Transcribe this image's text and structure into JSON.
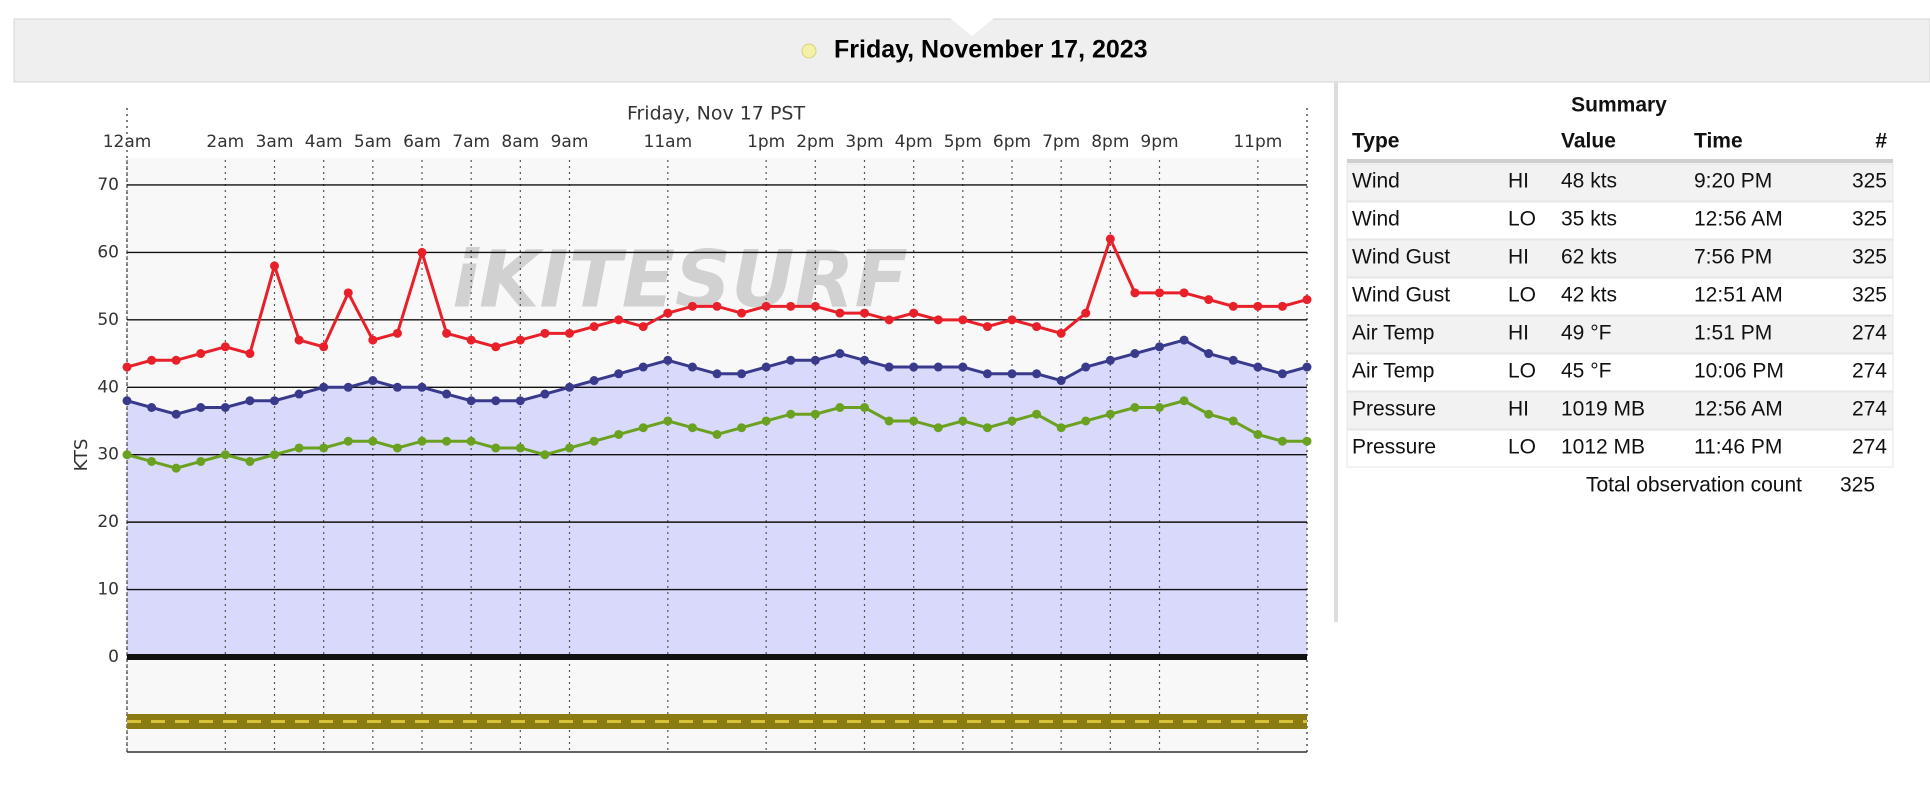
{
  "header": {
    "date": "Friday, November 17, 2023"
  },
  "chart_data": {
    "type": "line",
    "title": "Friday, Nov 17 PST",
    "y_label": "KTS",
    "watermark": "iKITESURF",
    "x": [
      0,
      0.5,
      1,
      1.5,
      2,
      2.5,
      3,
      3.5,
      4,
      4.5,
      5,
      5.5,
      6,
      6.5,
      7,
      7.5,
      8,
      8.5,
      9,
      9.5,
      10,
      10.5,
      11,
      11.5,
      12,
      12.5,
      13,
      13.5,
      14,
      14.5,
      15,
      15.5,
      16,
      16.5,
      17,
      17.5,
      18,
      18.5,
      19,
      19.5,
      20,
      20.5,
      21,
      21.5,
      22,
      22.5,
      23,
      23.5,
      24
    ],
    "xlim": [
      0,
      24
    ],
    "xticks": [
      {
        "value": 0,
        "label": "12am"
      },
      {
        "value": 2,
        "label": "2am"
      },
      {
        "value": 3,
        "label": "3am"
      },
      {
        "value": 4,
        "label": "4am"
      },
      {
        "value": 5,
        "label": "5am"
      },
      {
        "value": 6,
        "label": "6am"
      },
      {
        "value": 7,
        "label": "7am"
      },
      {
        "value": 8,
        "label": "8am"
      },
      {
        "value": 9,
        "label": "9am"
      },
      {
        "value": 11,
        "label": "11am"
      },
      {
        "value": 13,
        "label": "1pm"
      },
      {
        "value": 14,
        "label": "2pm"
      },
      {
        "value": 15,
        "label": "3pm"
      },
      {
        "value": 16,
        "label": "4pm"
      },
      {
        "value": 17,
        "label": "5pm"
      },
      {
        "value": 18,
        "label": "6pm"
      },
      {
        "value": 19,
        "label": "7pm"
      },
      {
        "value": 20,
        "label": "8pm"
      },
      {
        "value": 21,
        "label": "9pm"
      },
      {
        "value": 23,
        "label": "11pm"
      }
    ],
    "ylim": [
      -14,
      74
    ],
    "yticks": [
      0,
      10,
      20,
      30,
      40,
      50,
      60,
      70
    ],
    "grid": true,
    "series": [
      {
        "color": "#3a3a8c",
        "area_color": "#d9d9fb",
        "values": [
          38,
          37,
          36,
          37,
          37,
          38,
          38,
          39,
          40,
          40,
          41,
          40,
          40,
          39,
          38,
          38,
          38,
          39,
          40,
          41,
          42,
          43,
          44,
          43,
          42,
          42,
          43,
          44,
          44,
          45,
          44,
          43,
          43,
          43,
          43,
          42,
          42,
          42,
          41,
          43,
          44,
          45,
          46,
          47,
          45,
          44,
          43,
          42,
          43
        ]
      },
      {
        "color": "#e8202a",
        "values": [
          43,
          44,
          44,
          45,
          46,
          45,
          58,
          47,
          46,
          54,
          47,
          48,
          60,
          48,
          47,
          46,
          47,
          48,
          48,
          49,
          50,
          49,
          51,
          52,
          52,
          51,
          52,
          52,
          52,
          51,
          51,
          50,
          51,
          50,
          50,
          49,
          50,
          49,
          48,
          51,
          62,
          54,
          54,
          54,
          53,
          52,
          52,
          52,
          53
        ]
      },
      {
        "color": "#6aa121",
        "values": [
          30,
          29,
          28,
          29,
          30,
          29,
          30,
          31,
          31,
          32,
          32,
          31,
          32,
          32,
          32,
          31,
          31,
          30,
          31,
          32,
          33,
          34,
          35,
          34,
          33,
          34,
          35,
          36,
          36,
          37,
          37,
          35,
          35,
          34,
          35,
          34,
          35,
          36,
          34,
          35,
          36,
          37,
          37,
          38,
          36,
          35,
          33,
          32,
          32
        ]
      }
    ]
  },
  "table": {
    "title": "Summary",
    "columns": [
      "Type",
      null,
      "Value",
      "Time",
      "#"
    ],
    "rows": [
      [
        "Wind",
        "HI",
        "48 kts",
        "9:20 PM",
        325
      ],
      [
        "Wind",
        "LO",
        "35 kts",
        "12:56 AM",
        325
      ],
      [
        "Wind Gust",
        "HI",
        "62 kts",
        "7:56 PM",
        325
      ],
      [
        "Wind Gust",
        "LO",
        "42 kts",
        "12:51 AM",
        325
      ],
      [
        "Air Temp",
        "HI",
        "49 °F",
        "1:51 PM",
        274
      ],
      [
        "Air Temp",
        "LO",
        "45 °F",
        "10:06 PM",
        274
      ],
      [
        "Pressure",
        "HI",
        "1019 MB",
        "12:56 AM",
        274
      ],
      [
        "Pressure",
        "LO",
        "1012 MB",
        "11:46 PM",
        274
      ]
    ],
    "footer": {
      "label": "Total observation count",
      "value": 325
    }
  }
}
